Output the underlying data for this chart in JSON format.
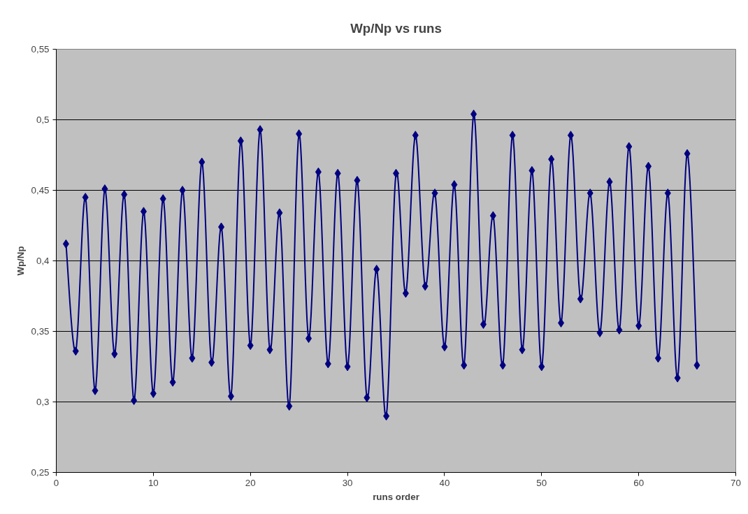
{
  "chart_data": {
    "type": "line",
    "title": "Wp/Np vs runs",
    "xlabel": "runs order",
    "ylabel": "Wp/Np",
    "x": [
      1,
      2,
      3,
      4,
      5,
      6,
      7,
      8,
      9,
      10,
      11,
      12,
      13,
      14,
      15,
      16,
      17,
      18,
      19,
      20,
      21,
      22,
      23,
      24,
      25,
      26,
      27,
      28,
      29,
      30,
      31,
      32,
      33,
      34,
      35,
      36,
      37,
      38,
      39,
      40,
      41,
      42,
      43,
      44,
      45,
      46,
      47,
      48,
      49,
      50,
      51,
      52,
      53,
      54,
      55,
      56,
      57,
      58,
      59,
      60,
      61,
      62,
      63,
      64,
      65,
      66
    ],
    "series": [
      {
        "color": "#000080",
        "values": [
          0.412,
          0.336,
          0.445,
          0.308,
          0.451,
          0.334,
          0.447,
          0.301,
          0.435,
          0.306,
          0.444,
          0.314,
          0.45,
          0.331,
          0.47,
          0.328,
          0.424,
          0.304,
          0.485,
          0.34,
          0.493,
          0.337,
          0.434,
          0.297,
          0.49,
          0.345,
          0.463,
          0.327,
          0.462,
          0.325,
          0.457,
          0.303,
          0.394,
          0.29,
          0.462,
          0.377,
          0.489,
          0.382,
          0.448,
          0.339,
          0.454,
          0.326,
          0.504,
          0.355,
          0.432,
          0.326,
          0.489,
          0.337,
          0.464,
          0.325,
          0.472,
          0.356,
          0.489,
          0.373,
          0.448,
          0.349,
          0.456,
          0.351,
          0.481,
          0.354,
          0.467,
          0.331,
          0.448,
          0.317,
          0.476,
          0.326
        ]
      }
    ],
    "xlim": [
      0,
      70
    ],
    "xticks": [
      0,
      10,
      20,
      30,
      40,
      50,
      60,
      70
    ],
    "ylim": [
      0.25,
      0.55
    ],
    "yticks": [
      {
        "value": 0.25,
        "label": "0,25"
      },
      {
        "value": 0.3,
        "label": "0,3"
      },
      {
        "value": 0.35,
        "label": "0,35"
      },
      {
        "value": 0.4,
        "label": "0,4"
      },
      {
        "value": 0.45,
        "label": "0,45"
      },
      {
        "value": 0.5,
        "label": "0,5"
      },
      {
        "value": 0.55,
        "label": "0,55"
      }
    ],
    "grid": "y",
    "marker": "diamond",
    "line_style": "solid"
  }
}
